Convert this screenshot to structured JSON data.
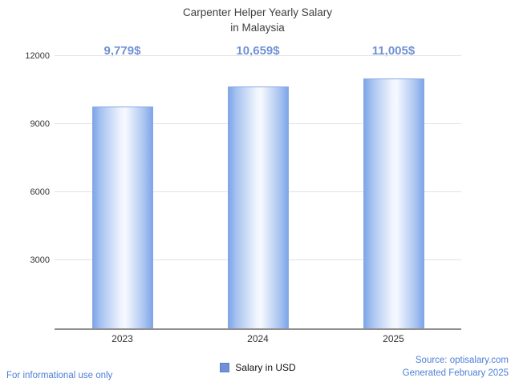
{
  "header": {
    "title_line1": "Carpenter Helper Yearly Salary",
    "title_line2": "in Malaysia"
  },
  "chart_data": {
    "type": "bar",
    "categories": [
      "2023",
      "2024",
      "2025"
    ],
    "values": [
      9779,
      10659,
      11005
    ],
    "value_labels": [
      "9,779$",
      "10,659$",
      "11,005$"
    ],
    "series_name": "Salary in USD",
    "title": "Carpenter Helper Yearly Salary in Malaysia",
    "xlabel": "",
    "ylabel": "",
    "ylim": [
      0,
      12000
    ],
    "yticks": [
      3000,
      6000,
      9000,
      12000
    ],
    "grid": true,
    "legend_position": "bottom"
  },
  "legend": {
    "label": "Salary in USD",
    "swatch_color": "#7191d6"
  },
  "footer": {
    "left": "For informational use only",
    "source": "Source: optisalary.com",
    "generated": "Generated February 2025"
  },
  "colors": {
    "value_label": "#7191d6",
    "footer_text": "#4e7fd6",
    "bar_edge": "#7fa6e9",
    "bar_center": "#f7faff"
  }
}
